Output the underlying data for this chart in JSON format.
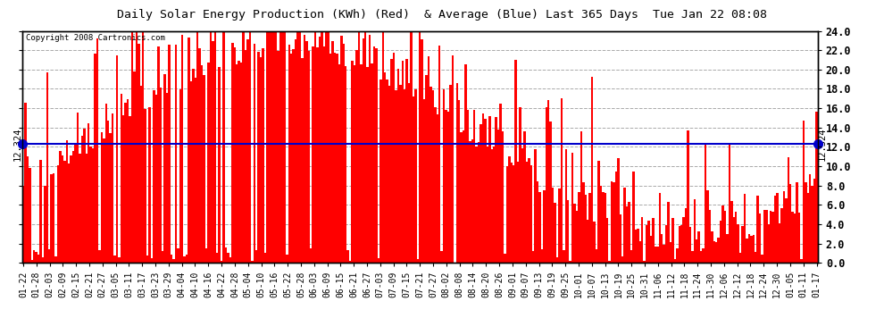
{
  "title": "Daily Solar Energy Production (KWh) (Red)  & Average (Blue) Last 365 Days  Tue Jan 22 08:08",
  "copyright": "Copyright 2008 Cartronics.com",
  "average": 12.324,
  "ylim": [
    0,
    24.0
  ],
  "yticks": [
    0.0,
    2.0,
    4.0,
    6.0,
    8.0,
    10.0,
    12.0,
    14.0,
    16.0,
    18.0,
    20.0,
    22.0,
    24.0
  ],
  "bar_color": "#ff0000",
  "avg_line_color": "#0000cc",
  "avg_dot_color": "#0000cc",
  "background_color": "#ffffff",
  "grid_color": "#aaaaaa",
  "title_bg": "#c8c8c8",
  "x_labels": [
    "01-22",
    "01-28",
    "02-03",
    "02-09",
    "02-15",
    "02-21",
    "02-27",
    "03-05",
    "03-11",
    "03-17",
    "03-23",
    "03-29",
    "04-04",
    "04-10",
    "04-16",
    "04-22",
    "04-28",
    "05-04",
    "05-10",
    "05-16",
    "05-22",
    "05-28",
    "06-03",
    "06-09",
    "06-15",
    "06-21",
    "06-27",
    "07-03",
    "07-09",
    "07-15",
    "07-21",
    "07-27",
    "08-02",
    "08-08",
    "08-14",
    "08-20",
    "08-26",
    "09-01",
    "09-07",
    "09-13",
    "09-19",
    "09-25",
    "10-01",
    "10-07",
    "10-13",
    "10-19",
    "10-25",
    "10-31",
    "11-06",
    "11-12",
    "11-18",
    "11-24",
    "11-30",
    "12-06",
    "12-12",
    "12-18",
    "12-24",
    "12-30",
    "01-05",
    "01-11",
    "01-17"
  ],
  "seed": 42,
  "n_bars": 365
}
